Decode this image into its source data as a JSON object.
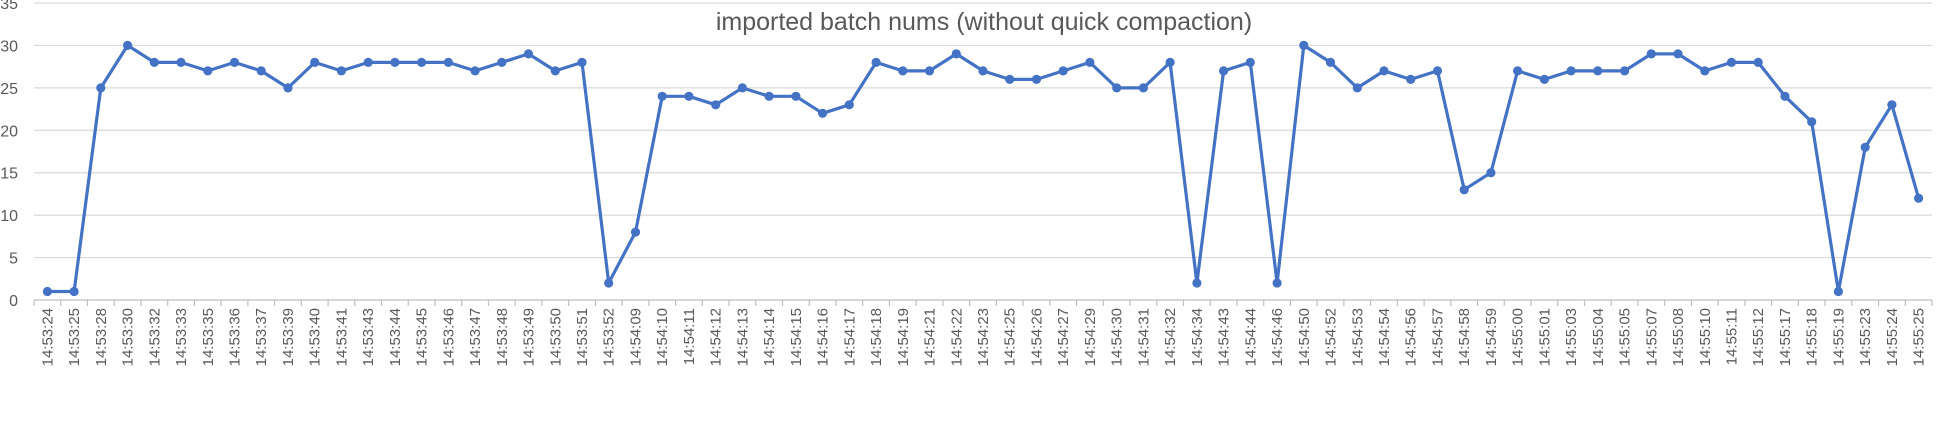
{
  "chart_data": {
    "type": "line",
    "title": "imported batch nums  (without quick compaction)",
    "xlabel": "",
    "ylabel": "",
    "ylim": [
      0,
      35
    ],
    "yticks": [
      0,
      5,
      10,
      15,
      20,
      25,
      30,
      35
    ],
    "grid": true,
    "legend": "none",
    "color": "#4472c4",
    "categories": [
      "14:53:24",
      "14:53:25",
      "14:53:28",
      "14:53:30",
      "14:53:32",
      "14:53:33",
      "14:53:35",
      "14:53:36",
      "14:53:37",
      "14:53:39",
      "14:53:40",
      "14:53:41",
      "14:53:43",
      "14:53:44",
      "14:53:45",
      "14:53:46",
      "14:53:47",
      "14:53:48",
      "14:53:49",
      "14:53:50",
      "14:53:51",
      "14:53:52",
      "14:54:09",
      "14:54:10",
      "14:54:11",
      "14:54:12",
      "14:54:13",
      "14:54:14",
      "14:54:15",
      "14:54:16",
      "14:54:17",
      "14:54:18",
      "14:54:19",
      "14:54:21",
      "14:54:22",
      "14:54:23",
      "14:54:25",
      "14:54:26",
      "14:54:27",
      "14:54:29",
      "14:54:30",
      "14:54:31",
      "14:54:32",
      "14:54:34",
      "14:54:43",
      "14:54:44",
      "14:54:46",
      "14:54:50",
      "14:54:52",
      "14:54:53",
      "14:54:54",
      "14:54:56",
      "14:54:57",
      "14:54:58",
      "14:54:59",
      "14:55:00",
      "14:55:01",
      "14:55:03",
      "14:55:04",
      "14:55:05",
      "14:55:07",
      "14:55:08",
      "14:55:10",
      "14:55:11",
      "14:55:12",
      "14:55:17",
      "14:55:18",
      "14:55:19",
      "14:55:23",
      "14:55:24",
      "14:55:25"
    ],
    "values": [
      1,
      1,
      25,
      30,
      28,
      28,
      27,
      28,
      27,
      25,
      28,
      27,
      28,
      28,
      28,
      28,
      27,
      28,
      29,
      27,
      28,
      2,
      8,
      24,
      24,
      23,
      25,
      24,
      24,
      22,
      23,
      28,
      27,
      27,
      29,
      27,
      26,
      26,
      27,
      28,
      25,
      25,
      28,
      2,
      27,
      28,
      2,
      30,
      28,
      25,
      27,
      26,
      27,
      13,
      15,
      27,
      26,
      27,
      27,
      27,
      29,
      29,
      27,
      28,
      28,
      24,
      21,
      1,
      18,
      23,
      12
    ]
  }
}
